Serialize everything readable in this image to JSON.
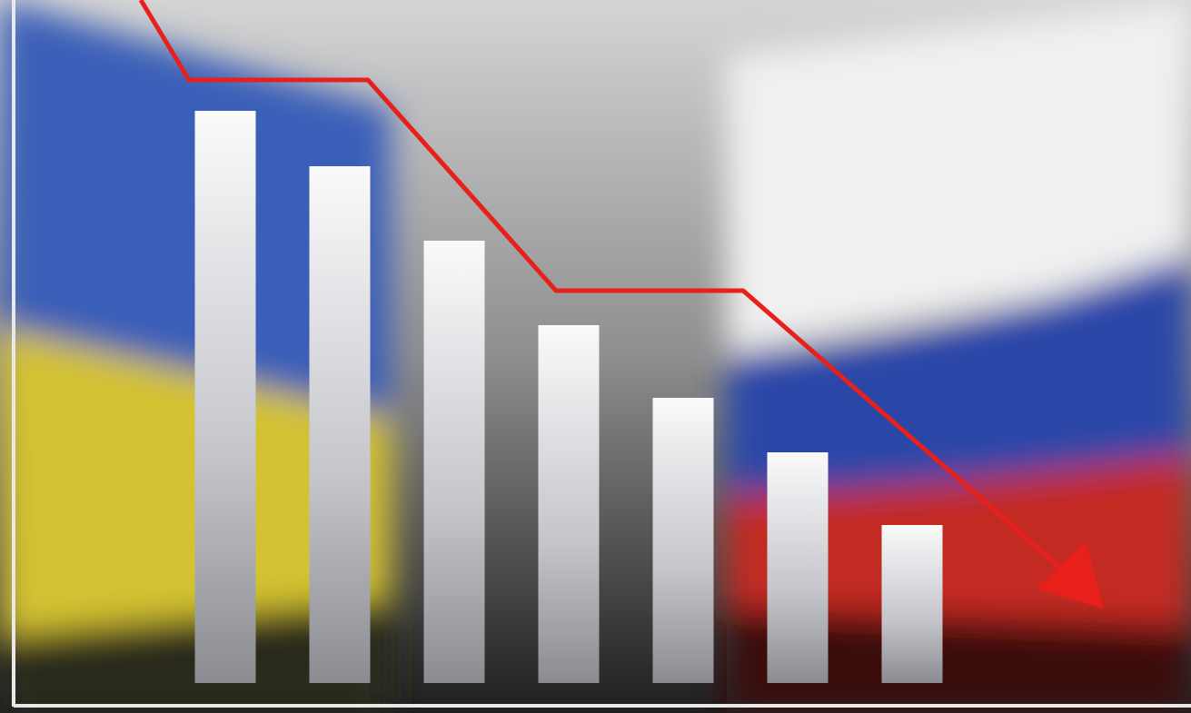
{
  "chart_data": {
    "type": "bar",
    "categories": [
      null,
      null,
      null,
      null,
      null,
      null,
      null
    ],
    "values": [
      630,
      569,
      487,
      394,
      314,
      254,
      174
    ],
    "ylim": [
      0,
      752
    ]
  }
}
